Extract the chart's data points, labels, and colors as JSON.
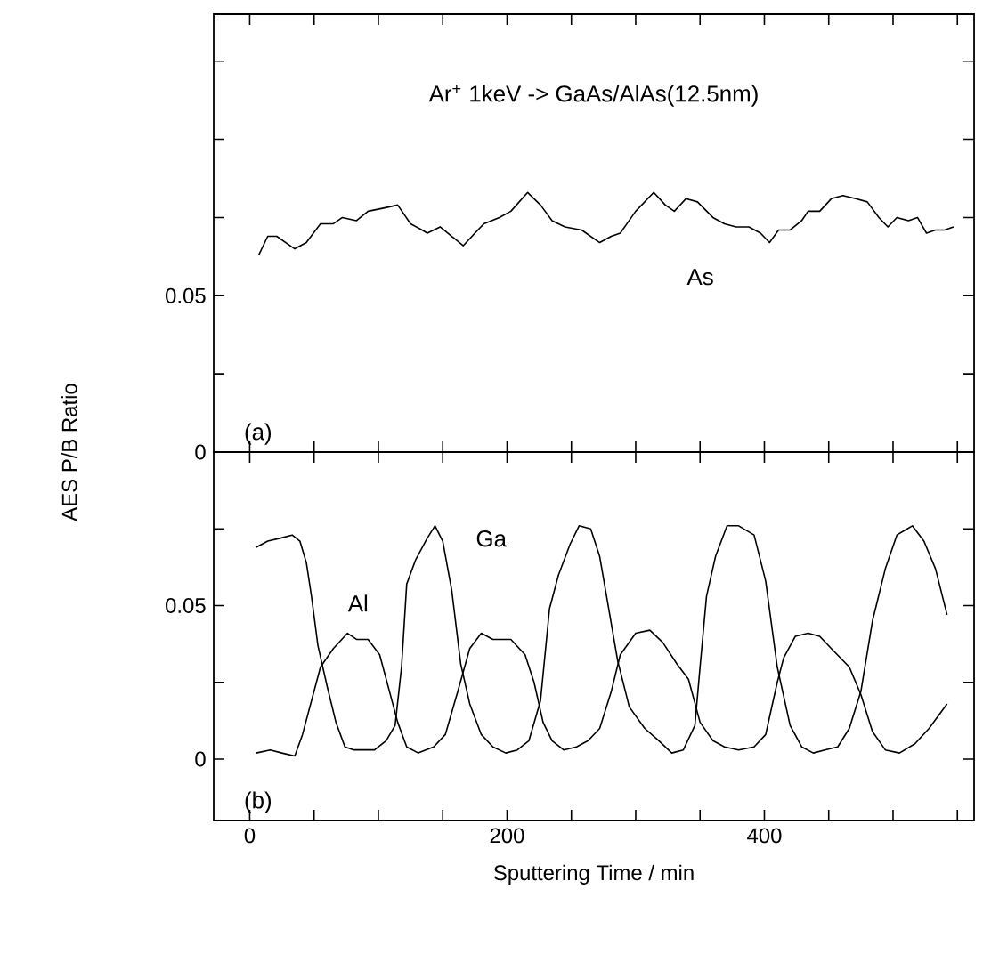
{
  "chart_data": [
    {
      "type": "line",
      "title": "Ar$^{+}$ 1keV -> GaAs/AlAs(12.5nm)",
      "xlim": [
        -28,
        563
      ],
      "xticks": [
        {
          "value": 0,
          "label": null
        },
        {
          "value": 50,
          "label": null
        },
        {
          "value": 100,
          "label": null
        },
        {
          "value": 150,
          "label": null
        },
        {
          "value": 200,
          "label": null
        },
        {
          "value": 250,
          "label": null
        },
        {
          "value": 300,
          "label": null
        },
        {
          "value": 350,
          "label": null
        },
        {
          "value": 400,
          "label": null
        },
        {
          "value": 450,
          "label": null
        },
        {
          "value": 500,
          "label": null
        },
        {
          "value": 550,
          "label": null
        }
      ],
      "ylim": [
        0,
        0.14
      ],
      "yticks": [
        0,
        {
          "value": 0.025,
          "label": null
        },
        0.05,
        {
          "value": 0.075,
          "label": null
        },
        {
          "value": 0.1,
          "label": null
        },
        {
          "value": 0.125,
          "label": null
        }
      ],
      "tick_labels": "y",
      "series": [
        {
          "color": "#000000",
          "x": [
            7,
            14,
            21,
            28,
            35,
            44,
            55,
            65,
            72,
            83,
            92,
            104,
            115,
            125,
            134,
            138,
            148,
            157,
            166,
            175,
            182,
            194,
            203,
            216,
            226,
            235,
            245,
            258,
            272,
            281,
            288,
            300,
            314,
            323,
            330,
            339,
            348,
            360,
            369,
            378,
            388,
            397,
            404,
            411,
            420,
            429,
            434,
            443,
            452,
            461,
            471,
            480,
            489,
            496,
            503,
            512,
            519,
            526,
            533,
            540,
            547
          ],
          "values": [
            0.063,
            0.069,
            0.069,
            0.067,
            0.065,
            0.067,
            0.073,
            0.073,
            0.075,
            0.074,
            0.077,
            0.078,
            0.079,
            0.073,
            0.071,
            0.07,
            0.072,
            0.069,
            0.066,
            0.07,
            0.073,
            0.075,
            0.077,
            0.083,
            0.079,
            0.074,
            0.072,
            0.071,
            0.067,
            0.069,
            0.07,
            0.077,
            0.083,
            0.079,
            0.077,
            0.081,
            0.08,
            0.075,
            0.073,
            0.072,
            0.072,
            0.07,
            0.067,
            0.071,
            0.071,
            0.074,
            0.077,
            0.077,
            0.081,
            0.082,
            0.081,
            0.08,
            0.075,
            0.072,
            0.075,
            0.074,
            0.075,
            0.07,
            0.071,
            0.071,
            0.072
          ]
        }
      ],
      "annotations": [
        "As",
        "(a)"
      ]
    },
    {
      "type": "line",
      "xlabel": "Sputtering Time / min",
      "ylabel": "AES P/B Ratio",
      "xlim": [
        -28,
        563
      ],
      "xticks": [
        0,
        {
          "value": 50,
          "label": null
        },
        {
          "value": 100,
          "label": null
        },
        {
          "value": 150,
          "label": null
        },
        200,
        {
          "value": 250,
          "label": null
        },
        {
          "value": 300,
          "label": null
        },
        {
          "value": 350,
          "label": null
        },
        400,
        {
          "value": 450,
          "label": null
        },
        {
          "value": 500,
          "label": null
        },
        {
          "value": 550,
          "label": null
        }
      ],
      "ylim": [
        -0.02,
        0.1
      ],
      "yticks": [
        0,
        {
          "value": 0.025,
          "label": null
        },
        0.05,
        {
          "value": 0.075,
          "label": null
        }
      ],
      "series": [
        {
          "color": "#000000",
          "x": [
            5,
            14,
            24,
            33,
            39,
            44,
            48,
            53,
            60,
            67,
            74,
            81,
            88,
            97,
            106,
            113,
            118,
            122,
            129,
            138,
            144,
            150,
            157,
            164,
            171,
            180,
            189,
            199,
            208,
            217,
            226,
            233,
            240,
            249,
            256,
            265,
            272,
            279,
            286,
            295,
            307,
            318,
            328,
            337,
            346,
            350,
            355,
            362,
            371,
            380,
            392,
            401,
            410,
            420,
            429,
            438,
            447,
            457,
            466,
            475,
            484,
            494,
            503,
            515,
            524,
            533,
            542
          ],
          "values": [
            0.069,
            0.071,
            0.072,
            0.073,
            0.071,
            0.064,
            0.053,
            0.037,
            0.024,
            0.012,
            0.004,
            0.003,
            0.003,
            0.003,
            0.006,
            0.011,
            0.03,
            0.057,
            0.065,
            0.072,
            0.076,
            0.071,
            0.055,
            0.031,
            0.018,
            0.008,
            0.004,
            0.002,
            0.003,
            0.006,
            0.019,
            0.049,
            0.06,
            0.07,
            0.076,
            0.075,
            0.066,
            0.049,
            0.032,
            0.017,
            0.01,
            0.006,
            0.002,
            0.003,
            0.011,
            0.03,
            0.053,
            0.066,
            0.076,
            0.076,
            0.073,
            0.058,
            0.03,
            0.011,
            0.004,
            0.002,
            0.003,
            0.004,
            0.01,
            0.022,
            0.045,
            0.062,
            0.073,
            0.076,
            0.071,
            0.062,
            0.047
          ]
        },
        {
          "color": "#000000",
          "x": [
            5,
            16,
            25,
            35,
            41,
            48,
            55,
            65,
            76,
            83,
            92,
            101,
            108,
            115,
            122,
            131,
            143,
            152,
            161,
            171,
            180,
            189,
            203,
            214,
            221,
            228,
            235,
            244,
            254,
            263,
            272,
            281,
            288,
            300,
            311,
            321,
            332,
            341,
            350,
            360,
            369,
            380,
            392,
            401,
            410,
            415,
            424,
            434,
            443,
            452,
            466,
            475,
            484,
            494,
            505,
            517,
            528,
            535,
            542
          ],
          "values": [
            0.002,
            0.003,
            0.002,
            0.001,
            0.008,
            0.019,
            0.03,
            0.036,
            0.041,
            0.039,
            0.039,
            0.034,
            0.023,
            0.012,
            0.004,
            0.002,
            0.004,
            0.008,
            0.021,
            0.036,
            0.041,
            0.039,
            0.039,
            0.034,
            0.025,
            0.012,
            0.006,
            0.003,
            0.004,
            0.006,
            0.01,
            0.022,
            0.034,
            0.041,
            0.042,
            0.038,
            0.031,
            0.026,
            0.012,
            0.006,
            0.004,
            0.003,
            0.004,
            0.008,
            0.025,
            0.033,
            0.04,
            0.041,
            0.04,
            0.036,
            0.03,
            0.021,
            0.009,
            0.003,
            0.002,
            0.005,
            0.01,
            0.014,
            0.018
          ]
        }
      ],
      "annotations": [
        "Al",
        "Ga",
        "(b)"
      ]
    }
  ]
}
